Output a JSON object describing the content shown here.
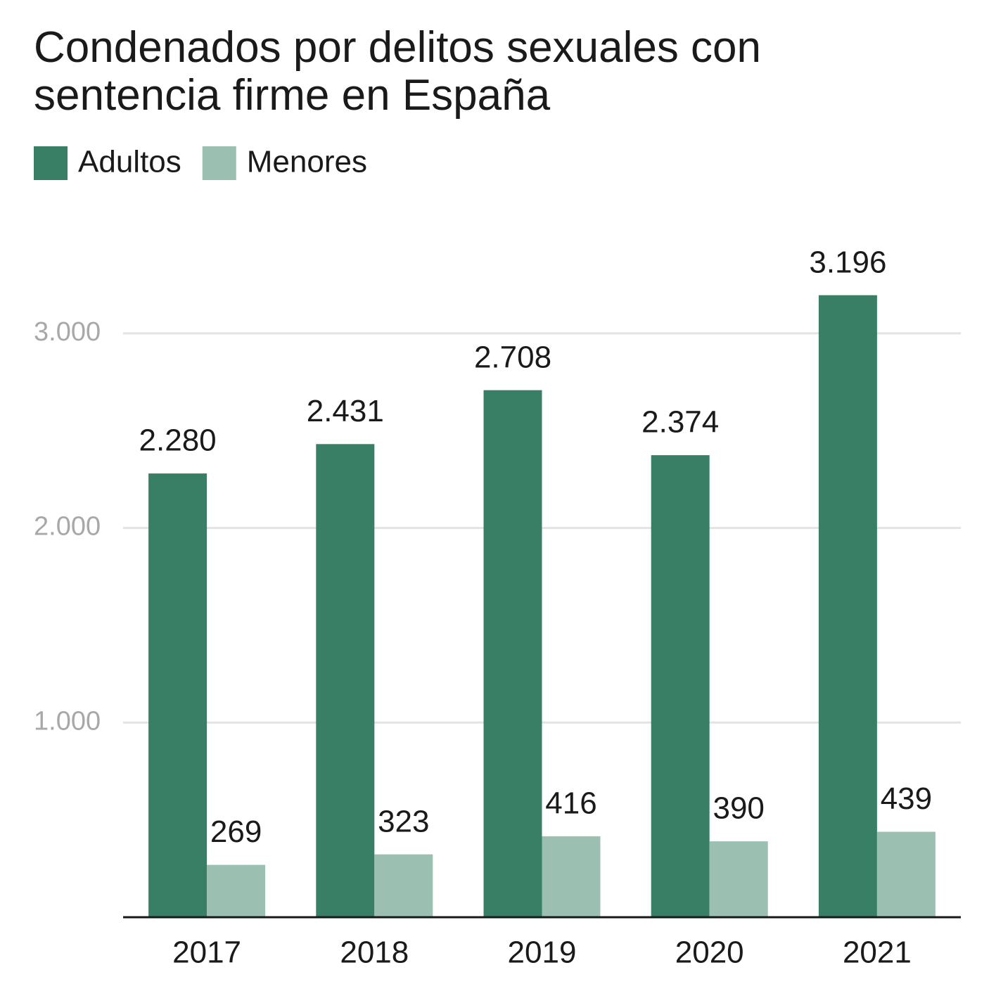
{
  "chart_data": {
    "type": "bar",
    "title": "Condenados por delitos sexuales con sentencia firme en España",
    "categories": [
      "2017",
      "2018",
      "2019",
      "2020",
      "2021"
    ],
    "series": [
      {
        "name": "Adultos",
        "color": "#387f66",
        "values": [
          2280,
          2431,
          2708,
          2374,
          3196
        ],
        "value_labels": [
          "2.280",
          "2.431",
          "2.708",
          "2.374",
          "3.196"
        ]
      },
      {
        "name": "Menores",
        "color": "#9bbfb1",
        "values": [
          269,
          323,
          416,
          390,
          439
        ],
        "value_labels": [
          "269",
          "323",
          "416",
          "390",
          "439"
        ]
      }
    ],
    "ylim": [
      0,
      3500
    ],
    "yticks": [
      {
        "value": 1000,
        "label": "1.000"
      },
      {
        "value": 2000,
        "label": "2.000"
      },
      {
        "value": 3000,
        "label": "3.000"
      }
    ],
    "grid": true
  }
}
